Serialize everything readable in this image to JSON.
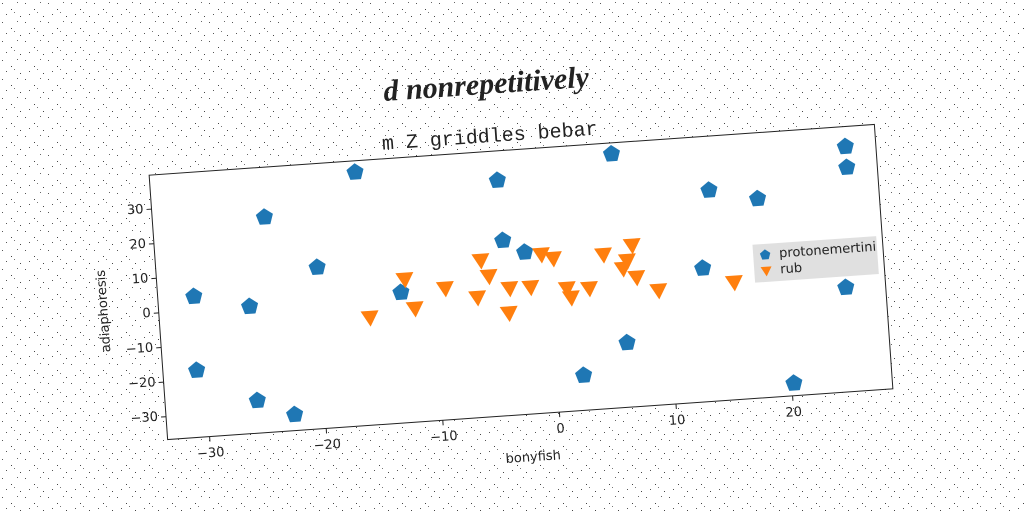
{
  "chart_data": {
    "type": "scatter",
    "title": "d nonrepetitively",
    "subtitle": "m Z griddles bebar",
    "xlabel": "bonyfish",
    "ylabel": "adiaphoresis",
    "xlim": [
      -33.6,
      28.6
    ],
    "ylim": [
      -36.6,
      39.8
    ],
    "xticks": [
      {
        "value": -30,
        "label": "−30"
      },
      {
        "value": -20,
        "label": "−20"
      },
      {
        "value": -10,
        "label": "−10"
      },
      0,
      10,
      20
    ],
    "yticks": [
      {
        "value": -30,
        "label": "−30"
      },
      {
        "value": -20,
        "label": "−20"
      },
      {
        "value": -10,
        "label": "−10"
      },
      0,
      10,
      20,
      30
    ],
    "legend": "center right",
    "series": [
      {
        "name": "protonemertini",
        "color": "#1f77b4",
        "marker": "pentagon",
        "x": [
          -30.5,
          -30.7,
          -25.8,
          -25.7,
          -24,
          -22.6,
          -19.8,
          -16,
          -12.8,
          -3.9,
          -3.8,
          -2,
          6,
          2.3,
          6.2,
          13.1,
          14.1,
          18.2,
          20.2,
          26,
          26,
          25.2
        ],
        "y": [
          4,
          -17.3,
          0,
          -27.2,
          25.4,
          -32,
          9.9,
          36.5,
          1,
          31.3,
          13.9,
          10.1,
          36.6,
          -26.5,
          -18,
          1.9,
          24.2,
          20.8,
          -33,
          34,
          28,
          -6.5
        ]
      },
      {
        "name": "rub",
        "color": "#ff7f0e",
        "marker": "triangle-down",
        "x": [
          -15.6,
          -12.4,
          -11.7,
          -9,
          -6.3,
          -5.8,
          -5.2,
          -3.5,
          -3.7,
          -1.7,
          -0.6,
          0.4,
          1.4,
          1.7,
          3.3,
          4.7,
          6.3,
          6.7,
          7.2,
          7.4,
          9.2,
          15.7
        ],
        "y": [
          -5.6,
          4.7,
          -3.9,
          1.3,
          -2,
          8.6,
          3.9,
          0,
          -7.1,
          -0.1,
          9.1,
          7.7,
          -1.2,
          -3.9,
          -1.6,
          7.8,
          3.4,
          5.6,
          9.9,
          0.6,
          -3.6,
          -2.8
        ]
      }
    ]
  }
}
